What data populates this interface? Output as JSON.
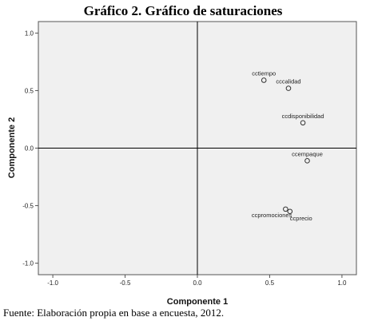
{
  "title": "Gráfico 2. Gráfico de saturaciones",
  "footer": "Fuente: Elaboración propia en base a encuesta, 2012.",
  "chart_data": {
    "type": "scatter",
    "xlabel": "Componente 1",
    "ylabel": "Componente 2",
    "xlim": [
      -1.1,
      1.1
    ],
    "ylim": [
      -1.1,
      1.1
    ],
    "x_ticks": [
      -1.0,
      -0.5,
      0.0,
      0.5,
      1.0
    ],
    "y_ticks": [
      1.0,
      0.5,
      0.0,
      -0.5,
      -1.0
    ],
    "x_tick_labels": [
      "-1.0",
      "-0.5",
      "0.0",
      "0.5",
      "1.0"
    ],
    "y_tick_labels": [
      "1.0",
      "0.5",
      "0.0",
      "-0.5",
      "-1.0"
    ],
    "grid": false,
    "reference_lines": {
      "x": 0,
      "y": 0
    },
    "points": [
      {
        "label": "cctiempo",
        "x": 0.46,
        "y": 0.59
      },
      {
        "label": "cccalidad",
        "x": 0.63,
        "y": 0.52
      },
      {
        "label": "ccdisponibilidad",
        "x": 0.73,
        "y": 0.22
      },
      {
        "label": "ccempaque",
        "x": 0.76,
        "y": -0.11
      },
      {
        "label": "ccpromociones",
        "x": 0.61,
        "y": -0.53
      },
      {
        "label": "ccprecio",
        "x": 0.64,
        "y": -0.55
      }
    ],
    "colors": {
      "plot_background": "#f0f0f0",
      "marker": "#333333"
    }
  }
}
